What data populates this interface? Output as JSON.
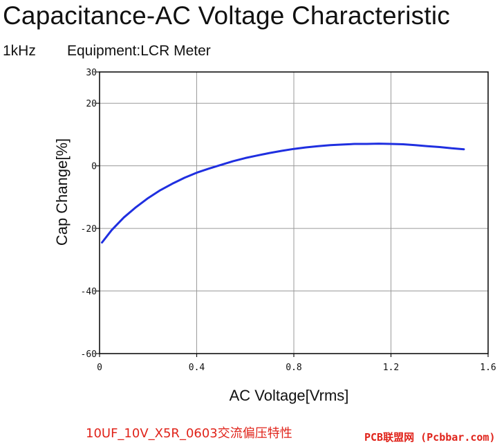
{
  "header": {
    "title": "Capacitance-AC Voltage Characteristic",
    "frequency": "1kHz",
    "equipment": "Equipment:LCR Meter"
  },
  "caption": "10UF_10V_X5R_0603交流偏压特性",
  "watermark": "PCB联盟网 (Pcbbar.com)",
  "colors": {
    "series": "#1f2fe0",
    "caption": "#e0231a",
    "grid": "#9a9a9a"
  },
  "chart_data": {
    "type": "line",
    "title": "Capacitance-AC Voltage Characteristic",
    "xlabel": "AC Voltage[Vrms]",
    "ylabel": "Cap Change[%]",
    "xlim": [
      0,
      1.6
    ],
    "ylim": [
      -60,
      30
    ],
    "xticks": [
      "0",
      "0.4",
      "0.8",
      "1.2",
      "1.6"
    ],
    "yticks": [
      "30",
      "20",
      "0",
      "-20",
      "-40",
      "-60"
    ],
    "grid": true,
    "series": [
      {
        "x": [
          0.01,
          0.05,
          0.1,
          0.15,
          0.2,
          0.25,
          0.3,
          0.35,
          0.4,
          0.45,
          0.5,
          0.55,
          0.6,
          0.65,
          0.7,
          0.75,
          0.8,
          0.85,
          0.9,
          0.95,
          1.0,
          1.05,
          1.1,
          1.15,
          1.2,
          1.25,
          1.3,
          1.35,
          1.4,
          1.45,
          1.5
        ],
        "y": [
          -24.5,
          -20.5,
          -16.5,
          -13.2,
          -10.3,
          -7.8,
          -5.7,
          -3.8,
          -2.2,
          -0.9,
          0.3,
          1.5,
          2.5,
          3.3,
          4.1,
          4.8,
          5.4,
          5.9,
          6.3,
          6.6,
          6.8,
          7.0,
          7.0,
          7.1,
          7.0,
          6.9,
          6.6,
          6.3,
          6.0,
          5.6,
          5.3
        ]
      }
    ]
  }
}
